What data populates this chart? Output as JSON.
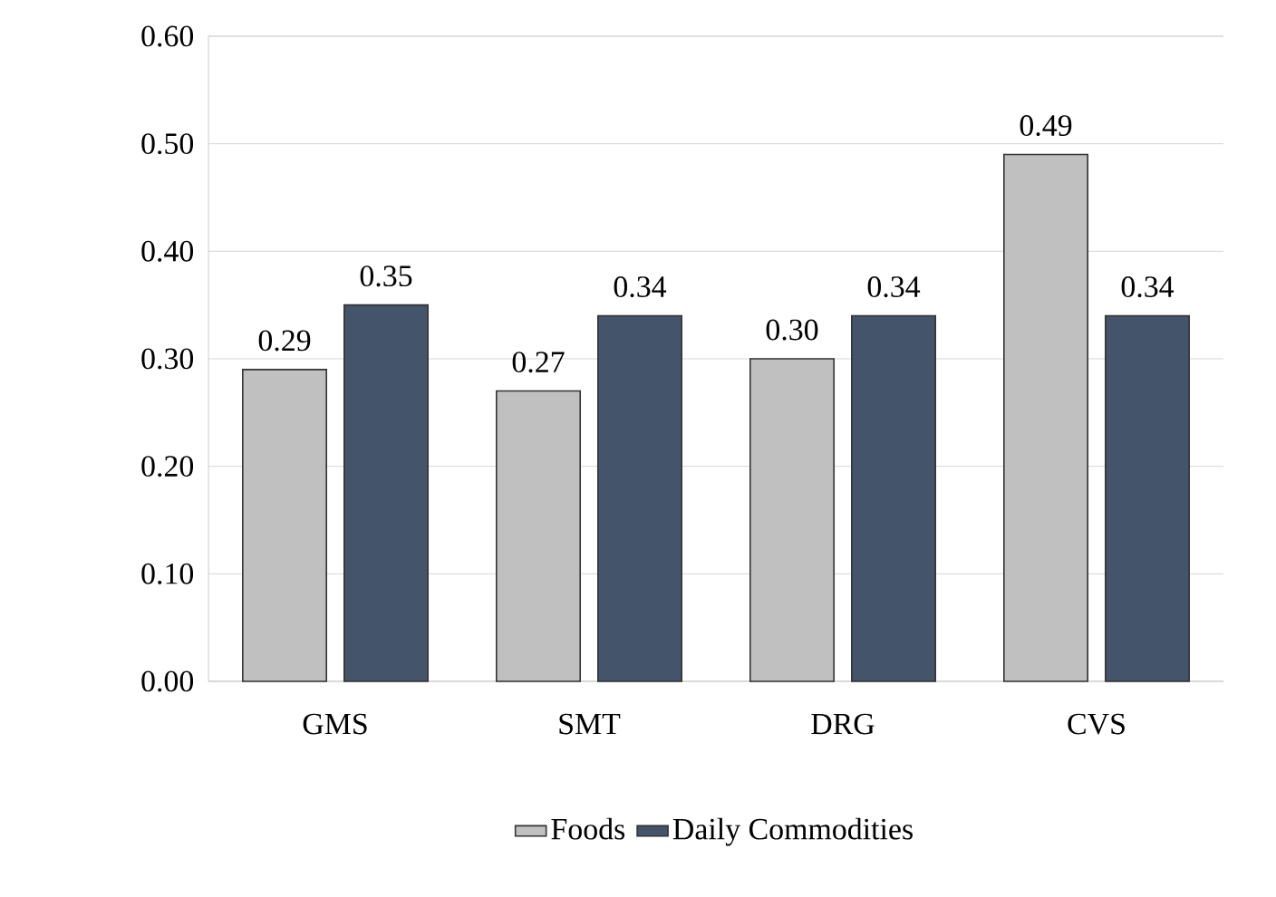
{
  "chart_data": {
    "type": "bar",
    "categories": [
      "GMS",
      "SMT",
      "DRG",
      "CVS"
    ],
    "series": [
      {
        "name": "Foods",
        "color": "#c0c0c0",
        "values": [
          0.29,
          0.27,
          0.3,
          0.49
        ],
        "value_labels": [
          "0.29",
          "0.27",
          "0.30",
          "0.49"
        ]
      },
      {
        "name": "Daily Commodities",
        "color": "#44546a",
        "values": [
          0.35,
          0.34,
          0.34,
          0.34
        ],
        "value_labels": [
          "0.35",
          "0.34",
          "0.34",
          "0.34"
        ]
      }
    ],
    "ylim": [
      0,
      0.6
    ],
    "yticks": [
      {
        "value": 0,
        "label": "0.00"
      },
      {
        "value": 0.1,
        "label": "0.10"
      },
      {
        "value": 0.2,
        "label": "0.20"
      },
      {
        "value": 0.3,
        "label": "0.30"
      },
      {
        "value": 0.4,
        "label": "0.40"
      },
      {
        "value": 0.5,
        "label": "0.50"
      },
      {
        "value": 0.6,
        "label": "0.60"
      }
    ],
    "grid": "y",
    "legend": "bottom"
  }
}
